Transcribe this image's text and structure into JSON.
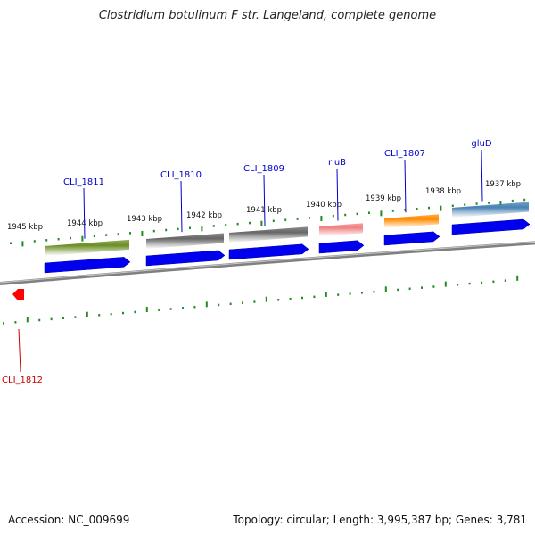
{
  "title": "Clostridium botulinum F str. Langeland, complete genome",
  "footer": {
    "accession": "Accession: NC_009699",
    "topology": "Topology: circular; Length: 3,995,387 bp; Genes: 3,781"
  },
  "colors": {
    "backbone": "#808080",
    "tick": "#228b22",
    "cds": "#0000ee",
    "label_blue": "#0000cc",
    "label_red": "#cc0000"
  },
  "kbp_labels": [
    "1945 kbp",
    "1944 kbp",
    "1943 kbp",
    "1942 kbp",
    "1941 kbp",
    "1940 kbp",
    "1939 kbp",
    "1938 kbp",
    "1937 kbp"
  ],
  "genes": [
    {
      "name": "CLI_1811",
      "color": "#6b8e23",
      "strand": "+"
    },
    {
      "name": "CLI_1810",
      "color": "#666666",
      "strand": "+"
    },
    {
      "name": "CLI_1809",
      "color": "#666666",
      "strand": "+"
    },
    {
      "name": "rluB",
      "color": "#f08080",
      "strand": "+"
    },
    {
      "name": "CLI_1807",
      "color": "#ff8c00",
      "strand": "+"
    },
    {
      "name": "gluD",
      "color": "#4682b4",
      "strand": "+"
    },
    {
      "name": "CLI_1812",
      "color": "#ff0000",
      "strand": "-"
    }
  ]
}
